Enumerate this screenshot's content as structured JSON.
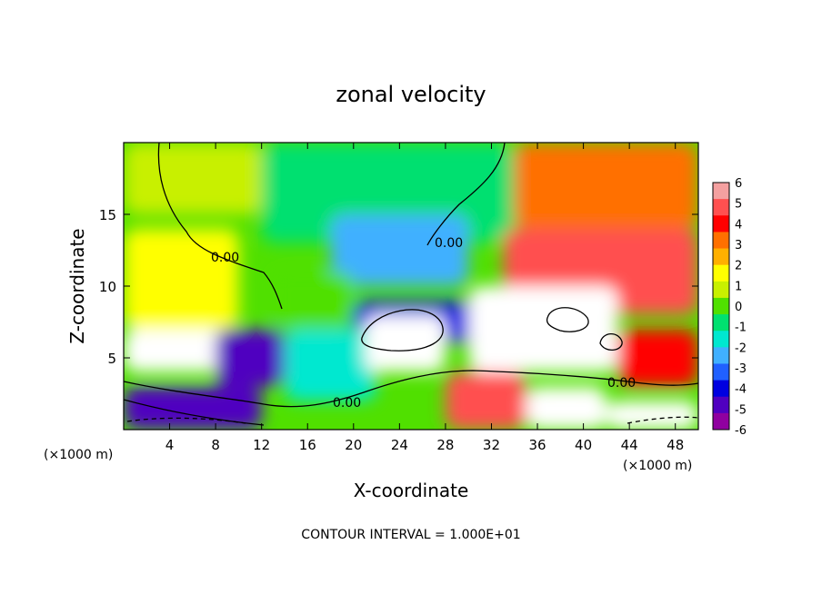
{
  "chart_data": {
    "type": "heatmap",
    "title": "zonal velocity",
    "xlabel": "X-coordinate",
    "ylabel": "Z-coordinate",
    "x_unit_label": "(×1000 m)",
    "x_unit_label_right": "(×1000 m)",
    "xlim": [
      0,
      50
    ],
    "ylim": [
      0,
      20
    ],
    "x_ticks": [
      "4",
      "8",
      "12",
      "16",
      "20",
      "24",
      "28",
      "32",
      "36",
      "40",
      "44",
      "48"
    ],
    "y_ticks": [
      "5",
      "10",
      "15"
    ],
    "colorbar": {
      "min": -6,
      "max": 6,
      "ticks": [
        "6",
        "5",
        "4",
        "3",
        "2",
        "1",
        "0",
        "-1",
        "-2",
        "-3",
        "-4",
        "-5",
        "-6"
      ],
      "colors": [
        "#f4a0a0",
        "#ff5050",
        "#ff0000",
        "#ff7000",
        "#ffb000",
        "#ffff00",
        "#c8f000",
        "#50e000",
        "#00e070",
        "#00e8d0",
        "#40b0ff",
        "#2060ff",
        "#0000e0",
        "#5000c0",
        "#9000a0"
      ]
    },
    "contour_label": "0.00",
    "contour_interval_text": "CONTOUR INTERVAL = 1.000E+01",
    "regions": [
      {
        "x": [
          0,
          12
        ],
        "z": [
          15,
          20
        ],
        "value": 0.6
      },
      {
        "x": [
          12,
          34
        ],
        "z": [
          13,
          20
        ],
        "value": -1.0
      },
      {
        "x": [
          18,
          30
        ],
        "z": [
          10,
          15
        ],
        "value": -2.3
      },
      {
        "x": [
          34,
          50
        ],
        "z": [
          14,
          20
        ],
        "value": 3.0
      },
      {
        "x": [
          0,
          10
        ],
        "z": [
          7,
          14
        ],
        "value": 1.8
      },
      {
        "x": [
          13,
          20
        ],
        "z": [
          7,
          11
        ],
        "value": 0.3
      },
      {
        "x": [
          20,
          31
        ],
        "z": [
          6,
          9
        ],
        "value": -3.8
      },
      {
        "x": [
          33,
          50
        ],
        "z": [
          8,
          14
        ],
        "value": 4.6
      },
      {
        "x": [
          0,
          9
        ],
        "z": [
          4,
          7
        ],
        "value": 6.5
      },
      {
        "x": [
          8,
          14
        ],
        "z": [
          3,
          7
        ],
        "value": -4.5
      },
      {
        "x": [
          14,
          22
        ],
        "z": [
          2,
          7
        ],
        "value": -1.8
      },
      {
        "x": [
          21,
          28
        ],
        "z": [
          4,
          8
        ],
        "value": 6.5
      },
      {
        "x": [
          30,
          43
        ],
        "z": [
          4,
          10
        ],
        "value": 6.5
      },
      {
        "x": [
          43,
          50
        ],
        "z": [
          3,
          7
        ],
        "value": 4.0
      },
      {
        "x": [
          0,
          12
        ],
        "z": [
          0,
          3
        ],
        "value": -5.0
      },
      {
        "x": [
          28,
          35
        ],
        "z": [
          0,
          4
        ],
        "value": 4.5
      },
      {
        "x": [
          35,
          42
        ],
        "z": [
          0,
          3
        ],
        "value": 6.5
      },
      {
        "x": [
          42,
          50
        ],
        "z": [
          0,
          2
        ],
        "value": 6.5
      }
    ]
  }
}
